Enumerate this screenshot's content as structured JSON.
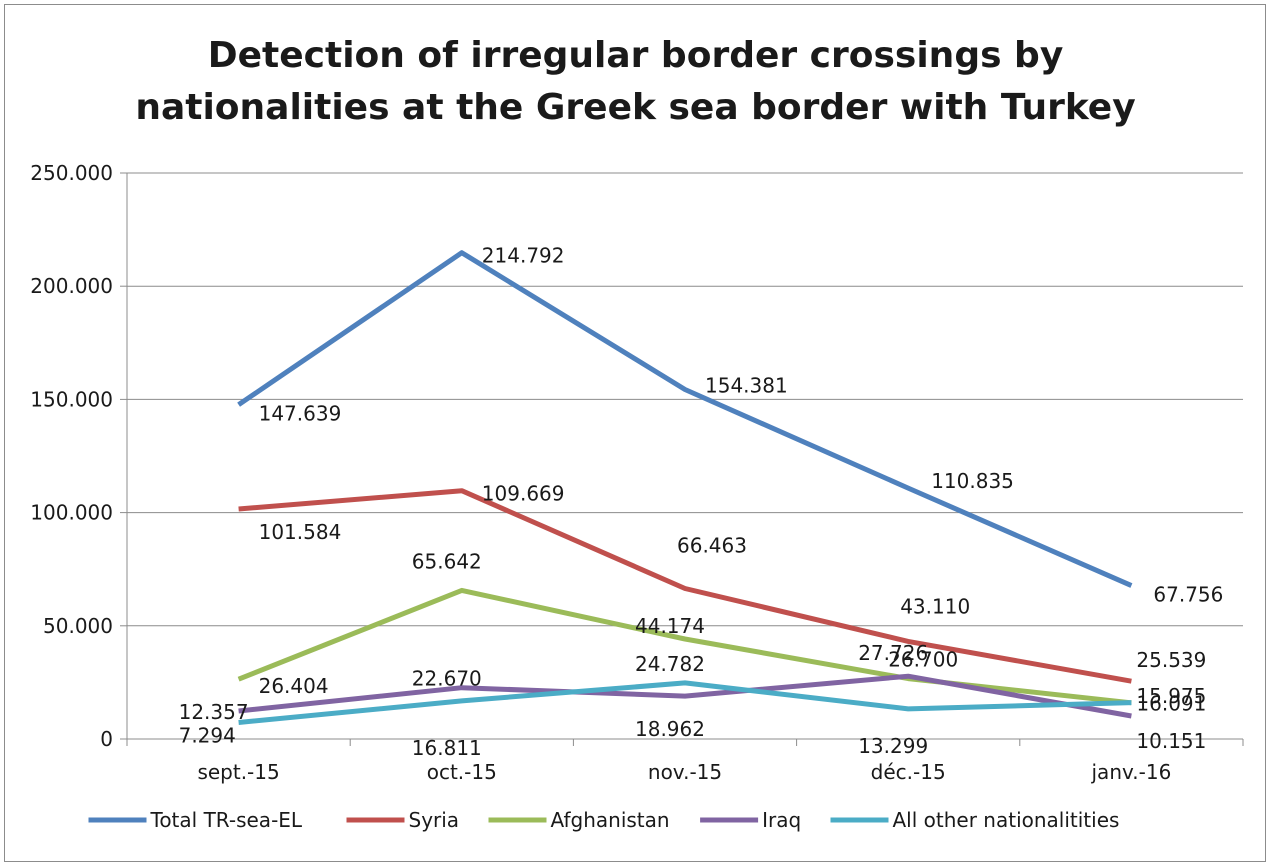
{
  "chart_data": {
    "type": "line",
    "title_lines": [
      "Detection of irregular border crossings by",
      "nationalities at the Greek sea border with Turkey"
    ],
    "categories": [
      "sept.-15",
      "oct.-15",
      "nov.-15",
      "déc.-15",
      "janv.-16"
    ],
    "ylim": [
      0,
      250000
    ],
    "yticks": [
      {
        "value": 0,
        "label": "0"
      },
      {
        "value": 50000,
        "label": "50.000"
      },
      {
        "value": 100000,
        "label": "100.000"
      },
      {
        "value": 150000,
        "label": "150.000"
      },
      {
        "value": 200000,
        "label": "200.000"
      },
      {
        "value": 250000,
        "label": "250.000"
      }
    ],
    "grid": true,
    "legend_position": "bottom",
    "series": [
      {
        "name": "Total TR-sea-EL",
        "color": "#4f81bd",
        "values": [
          147639,
          214792,
          154381,
          110835,
          67756
        ],
        "labels": [
          "147.639",
          "214.792",
          "154.381",
          "110.835",
          "67.756"
        ]
      },
      {
        "name": "Syria",
        "color": "#c0504d",
        "values": [
          101584,
          109669,
          66463,
          43110,
          25539
        ],
        "labels": [
          "101.584",
          "109.669",
          "66.463",
          "43.110",
          "25.539"
        ]
      },
      {
        "name": "Afghanistan",
        "color": "#9bbb59",
        "values": [
          26404,
          65642,
          44174,
          26700,
          15975
        ],
        "labels": [
          "26.404",
          "65.642",
          "44.174",
          "26.700",
          "15.975"
        ]
      },
      {
        "name": "Iraq",
        "color": "#8064a2",
        "values": [
          12357,
          22670,
          18962,
          27726,
          10151
        ],
        "labels": [
          "12.357",
          "22.670",
          "18.962",
          "27.726",
          "10.151"
        ]
      },
      {
        "name": "All other nationalitities",
        "color": "#4bacc6",
        "values": [
          7294,
          16811,
          24782,
          13299,
          16091
        ],
        "labels": [
          "7.294",
          "16.811",
          "24.782",
          "13.299",
          "16.091"
        ]
      }
    ]
  }
}
